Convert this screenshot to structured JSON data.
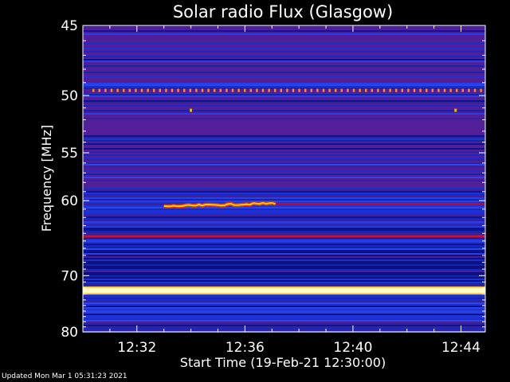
{
  "chart_data": {
    "type": "heatmap",
    "title": "Solar radio Flux (Glasgow)",
    "xlabel": "Start Time (19-Feb-21 12:30:00)",
    "ylabel": "Frequency [MHz]",
    "x_ticks": [
      "12:32",
      "12:36",
      "12:40",
      "12:44"
    ],
    "x_tick_minutes": [
      2,
      6,
      10,
      14
    ],
    "x_range_minutes": [
      0,
      14.9
    ],
    "y_ticks": [
      45,
      50,
      55,
      60,
      70,
      80
    ],
    "y_range_mhz": [
      45,
      80
    ],
    "y_scale": "reciprocal",
    "grid": false,
    "band_features": [
      {
        "kind": "dotted-line",
        "freq_mhz": 49.6,
        "color": "#ff8a3a"
      },
      {
        "kind": "dot",
        "freq_mhz": 51.2,
        "time_min": 4.0,
        "color": "#ffb000"
      },
      {
        "kind": "dot",
        "freq_mhz": 51.2,
        "time_min": 13.8,
        "color": "#ffb000"
      },
      {
        "kind": "band",
        "freq_mhz": 60.4,
        "color": "#b01030",
        "time_from_min": 7.0,
        "time_to_min": 14.9
      },
      {
        "kind": "burst",
        "freq_mhz": 60.4,
        "color": "#ffd000",
        "time_from_min": 3.0,
        "time_to_min": 7.2
      },
      {
        "kind": "band",
        "freq_mhz": 64.4,
        "color": "#cc1030",
        "time_from_min": 0,
        "time_to_min": 14.9
      },
      {
        "kind": "band",
        "freq_mhz": 72.4,
        "color": "#ffffc8",
        "time_from_min": 0,
        "time_to_min": 14.9
      }
    ],
    "colors": {
      "background": "#000000",
      "low": "#0a0a80",
      "mid": "#2840e8",
      "high": "#ffff80",
      "purple": "#5a1a8a"
    }
  },
  "footer": {
    "updated": "Updated Mon Mar  1 05:31:23 2021"
  }
}
